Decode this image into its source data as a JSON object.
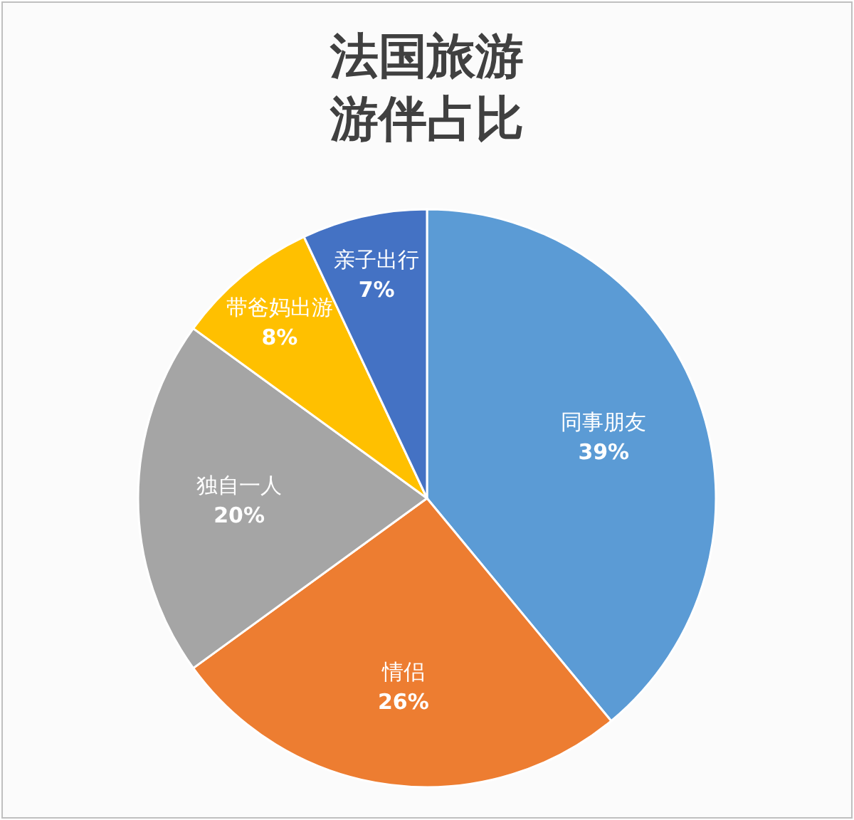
{
  "chart_data": {
    "type": "pie",
    "title": "法国旅游游伴占比",
    "categories": [
      "同事朋友",
      "情侣",
      "独自一人",
      "带爸妈出游",
      "亲子出行"
    ],
    "values": [
      39,
      26,
      20,
      8,
      7
    ],
    "colors": [
      "#5b9bd5",
      "#ed7d31",
      "#a5a5a5",
      "#ffc000",
      "#4472c4"
    ],
    "value_labels": [
      "39%",
      "26%",
      "20%",
      "8%",
      "7%"
    ]
  }
}
